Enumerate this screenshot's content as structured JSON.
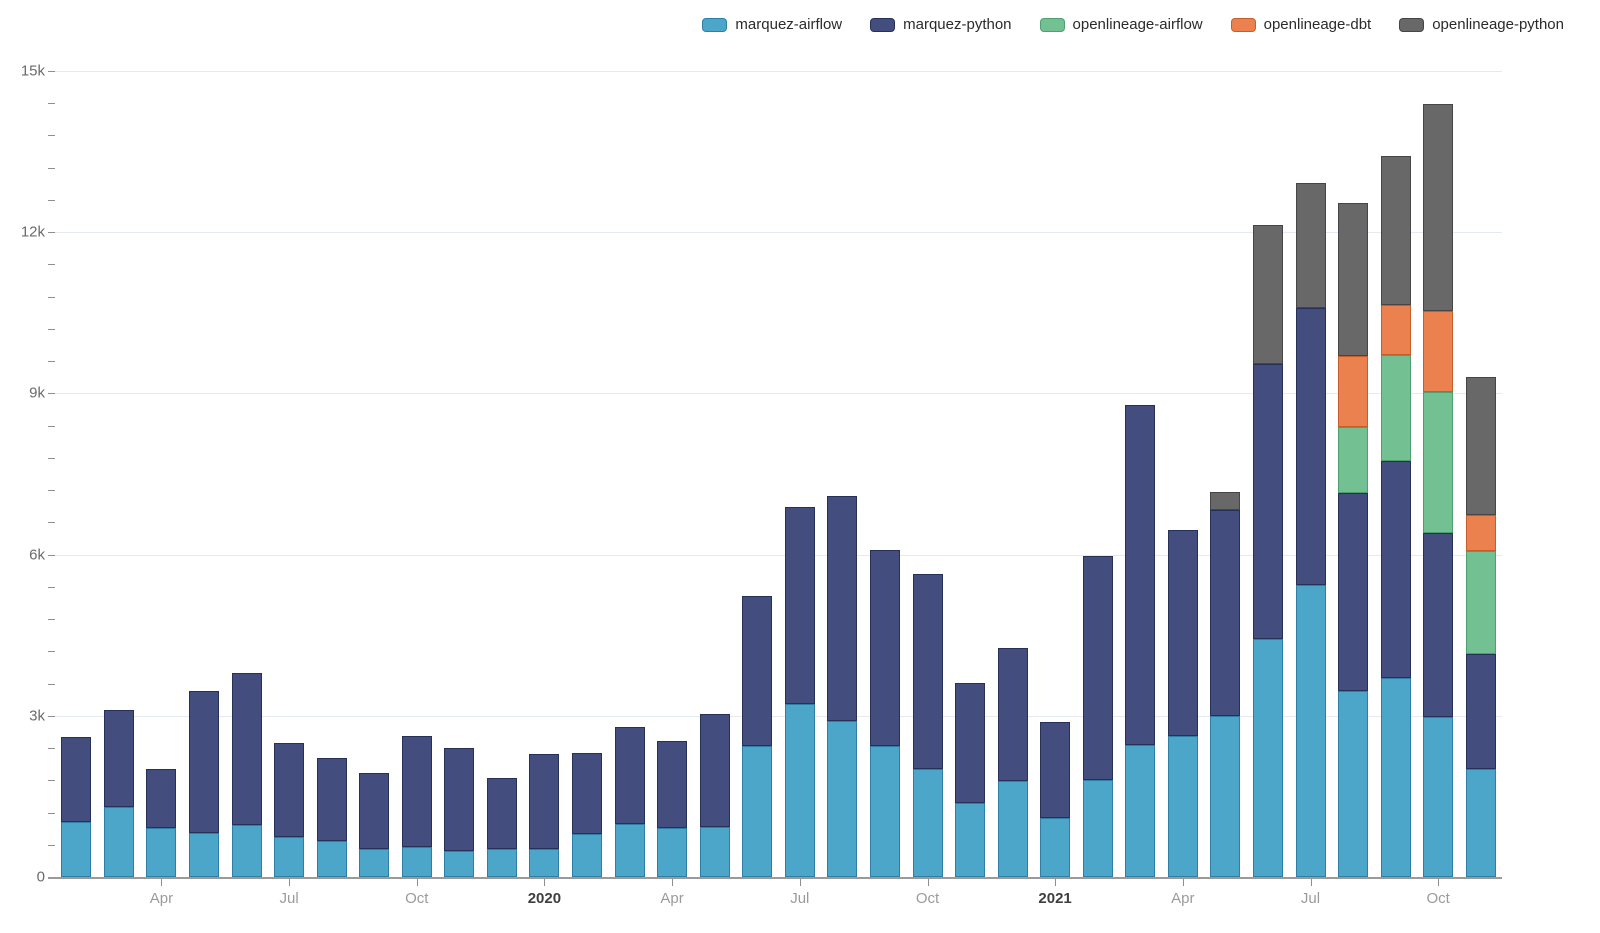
{
  "chart_data": {
    "type": "bar",
    "stacked": true,
    "title": "",
    "xlabel": "",
    "ylabel": "",
    "grid": true,
    "legend_position": "top-right",
    "x_months": [
      "2019-02",
      "2019-03",
      "2019-04",
      "2019-05",
      "2019-06",
      "2019-07",
      "2019-08",
      "2019-09",
      "2019-10",
      "2019-11",
      "2019-12",
      "2020-01",
      "2020-02",
      "2020-03",
      "2020-04",
      "2020-05",
      "2020-06",
      "2020-07",
      "2020-08",
      "2020-09",
      "2020-10",
      "2020-11",
      "2020-12",
      "2021-01",
      "2021-02",
      "2021-03",
      "2021-04",
      "2021-05",
      "2021-06",
      "2021-07",
      "2021-08",
      "2021-09",
      "2021-10",
      "2021-11"
    ],
    "x_tick_labels": [
      {
        "index": 2,
        "label": "Apr",
        "bold": false
      },
      {
        "index": 5,
        "label": "Jul",
        "bold": false
      },
      {
        "index": 8,
        "label": "Oct",
        "bold": false
      },
      {
        "index": 11,
        "label": "2020",
        "bold": true
      },
      {
        "index": 14,
        "label": "Apr",
        "bold": false
      },
      {
        "index": 17,
        "label": "Jul",
        "bold": false
      },
      {
        "index": 20,
        "label": "Oct",
        "bold": false
      },
      {
        "index": 23,
        "label": "2021",
        "bold": true
      },
      {
        "index": 26,
        "label": "Apr",
        "bold": false
      },
      {
        "index": 29,
        "label": "Jul",
        "bold": false
      },
      {
        "index": 32,
        "label": "Oct",
        "bold": false
      }
    ],
    "y_axis": {
      "min": 0,
      "max": 15000,
      "major_step": 3000,
      "minor_step": 600,
      "tick_labels": [
        "0",
        "3k",
        "6k",
        "9k",
        "12k",
        "15k"
      ]
    },
    "series": [
      {
        "name": "marquez-airflow",
        "color": "#4BA6C9",
        "border_color": "#2E7EA6",
        "values": [
          1030,
          1300,
          920,
          820,
          970,
          750,
          670,
          520,
          560,
          480,
          530,
          520,
          800,
          980,
          910,
          940,
          2430,
          3220,
          2900,
          2440,
          2020,
          1380,
          1790,
          1100,
          1800,
          2450,
          2630,
          3000,
          4430,
          5430,
          3470,
          3700,
          2970,
          2020
        ]
      },
      {
        "name": "marquez-python",
        "color": "#434E7F",
        "border_color": "#273157",
        "values": [
          1580,
          1800,
          1100,
          2640,
          2830,
          1750,
          1540,
          1420,
          2070,
          1930,
          1310,
          1780,
          1510,
          1820,
          1620,
          2090,
          2800,
          3660,
          4200,
          3640,
          3620,
          2230,
          2470,
          1790,
          4180,
          6340,
          3820,
          3840,
          5120,
          5160,
          3680,
          4040,
          3430,
          2140
        ]
      },
      {
        "name": "openlineage-airflow",
        "color": "#73C092",
        "border_color": "#4E9E6F",
        "values": [
          0,
          0,
          0,
          0,
          0,
          0,
          0,
          0,
          0,
          0,
          0,
          0,
          0,
          0,
          0,
          0,
          0,
          0,
          0,
          0,
          0,
          0,
          0,
          0,
          0,
          0,
          0,
          0,
          0,
          0,
          1220,
          1980,
          2620,
          1900
        ]
      },
      {
        "name": "openlineage-dbt",
        "color": "#EC8150",
        "border_color": "#C55E29",
        "values": [
          0,
          0,
          0,
          0,
          0,
          0,
          0,
          0,
          0,
          0,
          0,
          0,
          0,
          0,
          0,
          0,
          0,
          0,
          0,
          0,
          0,
          0,
          0,
          0,
          0,
          0,
          0,
          0,
          0,
          0,
          1320,
          930,
          1520,
          680
        ]
      },
      {
        "name": "openlineage-python",
        "color": "#686868",
        "border_color": "#454545",
        "values": [
          0,
          0,
          0,
          0,
          0,
          0,
          0,
          0,
          0,
          0,
          0,
          0,
          0,
          0,
          0,
          0,
          0,
          0,
          0,
          0,
          0,
          0,
          0,
          0,
          0,
          0,
          0,
          320,
          2590,
          2320,
          2850,
          2760,
          3850,
          2570
        ]
      }
    ]
  }
}
